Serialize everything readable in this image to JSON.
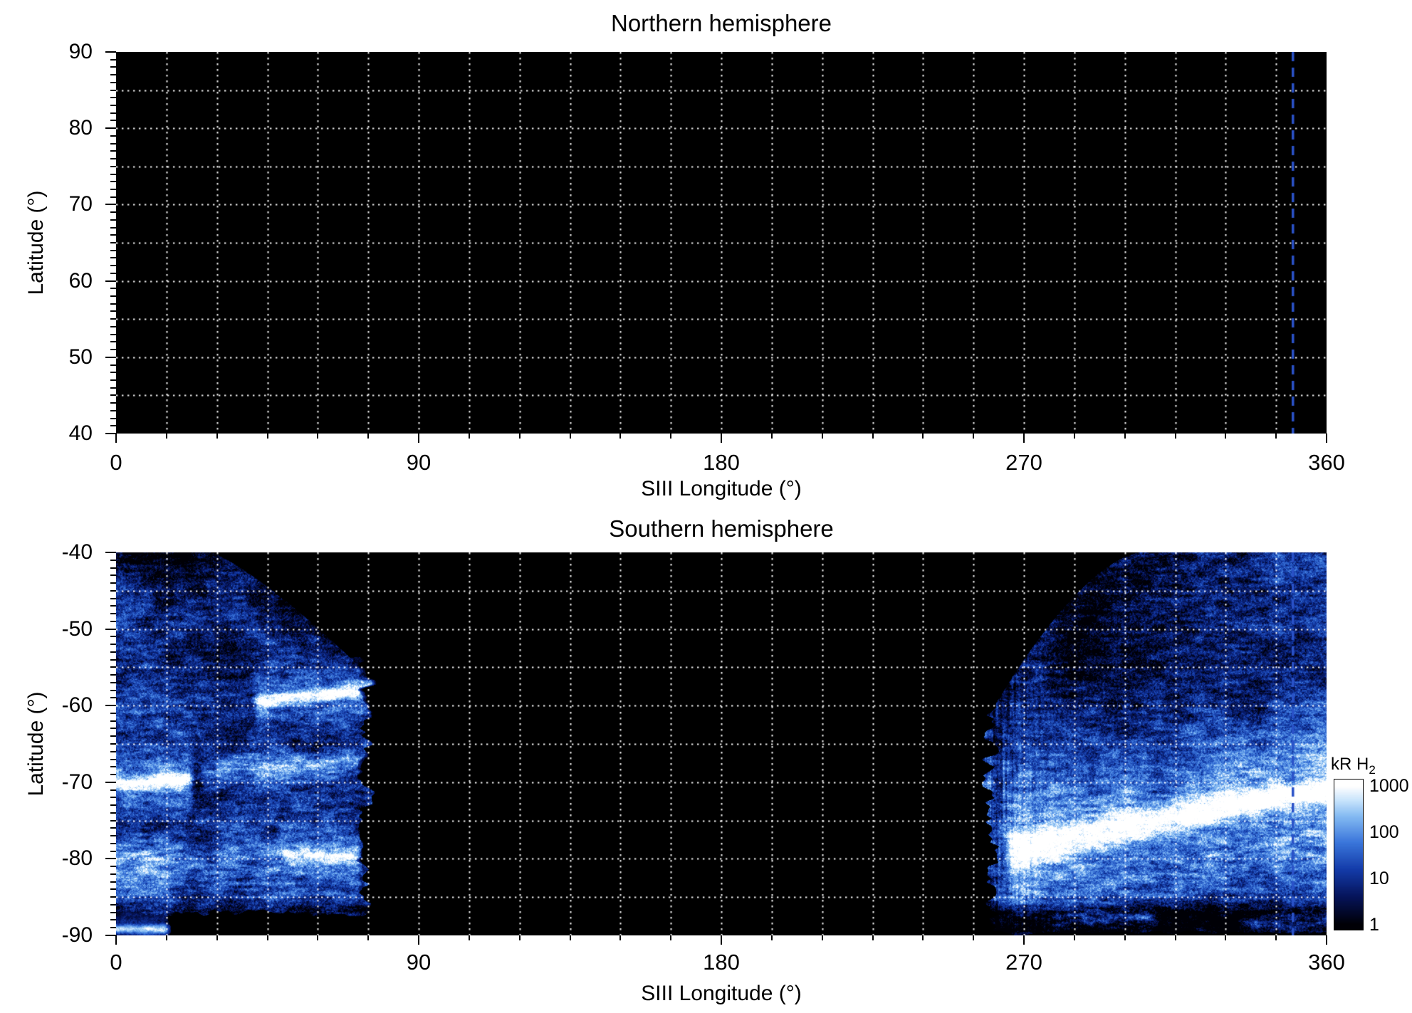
{
  "figure": {
    "background": "#ffffff"
  },
  "chart_data": [
    {
      "type": "heatmap",
      "title": "Northern hemisphere",
      "xlabel": "SIII Longitude (°)",
      "ylabel": "Latitude (°)",
      "xlim": [
        0,
        360
      ],
      "ylim": [
        40,
        90
      ],
      "xticks": [
        0,
        90,
        180,
        270,
        360
      ],
      "xtick_labels": [
        "0",
        "90",
        "180",
        "270",
        "360"
      ],
      "yticks": [
        90,
        80,
        70,
        60,
        50,
        40
      ],
      "ytick_labels": [
        "90",
        "80",
        "70",
        "60",
        "50",
        "40"
      ],
      "x_minor_step": 15,
      "y_minor_step": 1,
      "grid": {
        "lon_step": 15,
        "lat_step": 5,
        "color": "#ffffff",
        "style": "dotted"
      },
      "background": "#000000",
      "marker_line": {
        "longitude": 350,
        "color": "#2a52c8",
        "style": "dashed"
      },
      "emission_regions": []
    },
    {
      "type": "heatmap",
      "title": "Southern hemisphere",
      "xlabel": "SIII Longitude (°)",
      "ylabel": "Latitude (°)",
      "xlim": [
        0,
        360
      ],
      "ylim": [
        -90,
        -40
      ],
      "xticks": [
        0,
        90,
        180,
        270,
        360
      ],
      "xtick_labels": [
        "0",
        "90",
        "180",
        "270",
        "360"
      ],
      "yticks": [
        -40,
        -50,
        -60,
        -70,
        -80,
        -90
      ],
      "ytick_labels": [
        "-40",
        "-50",
        "-60",
        "-70",
        "-80",
        "-90"
      ],
      "x_minor_step": 15,
      "y_minor_step": 1,
      "grid": {
        "lon_step": 15,
        "lat_step": 5,
        "color": "#ffffff",
        "style": "dotted"
      },
      "background": "#000000",
      "marker_line": {
        "longitude": 350,
        "color": "#2a52c8",
        "style": "dashed"
      },
      "units": "kR H2",
      "value_scale": "log",
      "value_range": [
        1,
        1000
      ],
      "emission_regions": [
        {
          "name": "left-auroral-sector",
          "lon_range": [
            0,
            78
          ],
          "lat_range": [
            -88,
            -40
          ],
          "texture": "speckled",
          "arcs": [
            {
              "name": "main-oval-arc",
              "lon_min": 40,
              "lon_max": 80,
              "lat0": -59.6,
              "slope": 0.05,
              "sigma": 0.9,
              "amp": 2.6,
              "halo": 1.1,
              "streaky": 0
            },
            {
              "name": "west-bright-spot",
              "lon_min": -6,
              "lon_max": 24,
              "lat0": -70.2,
              "slope": 0.02,
              "sigma": 1.1,
              "amp": 2.7,
              "halo": 1.2,
              "streaky": 0
            },
            {
              "name": "mid-streak-band",
              "lon_min": 24,
              "lon_max": 80,
              "lat0": -68.6,
              "slope": 0.02,
              "sigma": 1.3,
              "amp": 1.5,
              "halo": 0,
              "streaky": 1
            },
            {
              "name": "low-latitude-band",
              "lon_min": -5,
              "lon_max": 74,
              "lat0": -80.8,
              "slope": 0,
              "sigma": 3.4,
              "amp": 1.1,
              "halo": 0,
              "streaky": 1
            },
            {
              "name": "low-latitude-bright-patch",
              "lon_min": 48,
              "lon_max": 74,
              "lat0": -79.6,
              "slope": 0,
              "sigma": 1.4,
              "amp": 2.1,
              "halo": 0.8,
              "streaky": 0
            },
            {
              "name": "bottom-edge-streak",
              "lon_min": -4,
              "lon_max": 17,
              "lat0": -89.2,
              "slope": 0,
              "sigma": 0.55,
              "amp": 2.6,
              "halo": 0.9,
              "streaky": 0
            }
          ]
        },
        {
          "name": "right-auroral-sector",
          "lon_range": [
            256,
            360
          ],
          "lat_range": [
            -89,
            -40
          ],
          "texture": "speckled",
          "main_arc": {
            "lon_min": 262,
            "lat_at_360": -71,
            "drop": 8.2,
            "span": 95,
            "exponent": 1.15,
            "sigma_start": 2.4,
            "sigma_end": 1.3,
            "amp": 2.7,
            "halo": 1.2
          },
          "sub_arc": {
            "offset": -6.5,
            "sigma": 2.8,
            "amp": 1.0
          },
          "bottom_streaks": [
            {
              "lon_min": 276,
              "lon_max": 312,
              "lat0": -87.6,
              "sigma": 0.9,
              "amp": 1.6
            },
            {
              "lon_min": 332,
              "lon_max": 366,
              "lat0": -88.4,
              "sigma": 0.8,
              "amp": 1.1
            }
          ]
        }
      ],
      "colorbar": {
        "label_main": "kR H",
        "label_sub": "2",
        "scale": "log",
        "tick_values": [
          1000,
          100,
          10,
          1
        ],
        "tick_labels": [
          "1000",
          "100",
          "10",
          "1"
        ],
        "colors": [
          "#000006",
          "#06145a",
          "#143caa",
          "#3c78dc",
          "#82b9f2",
          "#c8e4fc",
          "#ffffff"
        ]
      }
    }
  ]
}
